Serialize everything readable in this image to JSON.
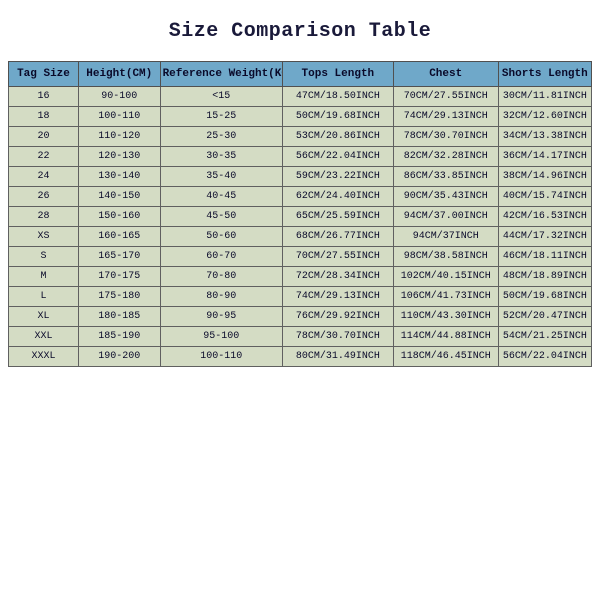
{
  "title": "Size Comparison Table",
  "table": {
    "type": "table",
    "header_bg": "#6fa8c9",
    "cell_bg": "#d4dcc4",
    "border_color": "#505050",
    "text_color": "#0a0a2a",
    "title_fontsize": 20,
    "header_fontsize": 11,
    "cell_fontsize": 10,
    "font_family": "Courier New",
    "column_widths": [
      "12%",
      "14%",
      "21%",
      "19%",
      "18%",
      "16%"
    ],
    "columns": [
      "Tag Size",
      "Height(CM)",
      "Reference Weight(KG)",
      "Tops Length",
      "Chest",
      "Shorts Length"
    ],
    "rows": [
      [
        "16",
        "90-100",
        "<15",
        "47CM/18.50INCH",
        "70CM/27.55INCH",
        "30CM/11.81INCH"
      ],
      [
        "18",
        "100-110",
        "15-25",
        "50CM/19.68INCH",
        "74CM/29.13INCH",
        "32CM/12.60INCH"
      ],
      [
        "20",
        "110-120",
        "25-30",
        "53CM/20.86INCH",
        "78CM/30.70INCH",
        "34CM/13.38INCH"
      ],
      [
        "22",
        "120-130",
        "30-35",
        "56CM/22.04INCH",
        "82CM/32.28INCH",
        "36CM/14.17INCH"
      ],
      [
        "24",
        "130-140",
        "35-40",
        "59CM/23.22INCH",
        "86CM/33.85INCH",
        "38CM/14.96INCH"
      ],
      [
        "26",
        "140-150",
        "40-45",
        "62CM/24.40INCH",
        "90CM/35.43INCH",
        "40CM/15.74INCH"
      ],
      [
        "28",
        "150-160",
        "45-50",
        "65CM/25.59INCH",
        "94CM/37.00INCH",
        "42CM/16.53INCH"
      ],
      [
        "XS",
        "160-165",
        "50-60",
        "68CM/26.77INCH",
        "94CM/37INCH",
        "44CM/17.32INCH"
      ],
      [
        "S",
        "165-170",
        "60-70",
        "70CM/27.55INCH",
        "98CM/38.58INCH",
        "46CM/18.11INCH"
      ],
      [
        "M",
        "170-175",
        "70-80",
        "72CM/28.34INCH",
        "102CM/40.15INCH",
        "48CM/18.89INCH"
      ],
      [
        "L",
        "175-180",
        "80-90",
        "74CM/29.13INCH",
        "106CM/41.73INCH",
        "50CM/19.68INCH"
      ],
      [
        "XL",
        "180-185",
        "90-95",
        "76CM/29.92INCH",
        "110CM/43.30INCH",
        "52CM/20.47INCH"
      ],
      [
        "XXL",
        "185-190",
        "95-100",
        "78CM/30.70INCH",
        "114CM/44.88INCH",
        "54CM/21.25INCH"
      ],
      [
        "XXXL",
        "190-200",
        "100-110",
        "80CM/31.49INCH",
        "118CM/46.45INCH",
        "56CM/22.04INCH"
      ]
    ]
  }
}
